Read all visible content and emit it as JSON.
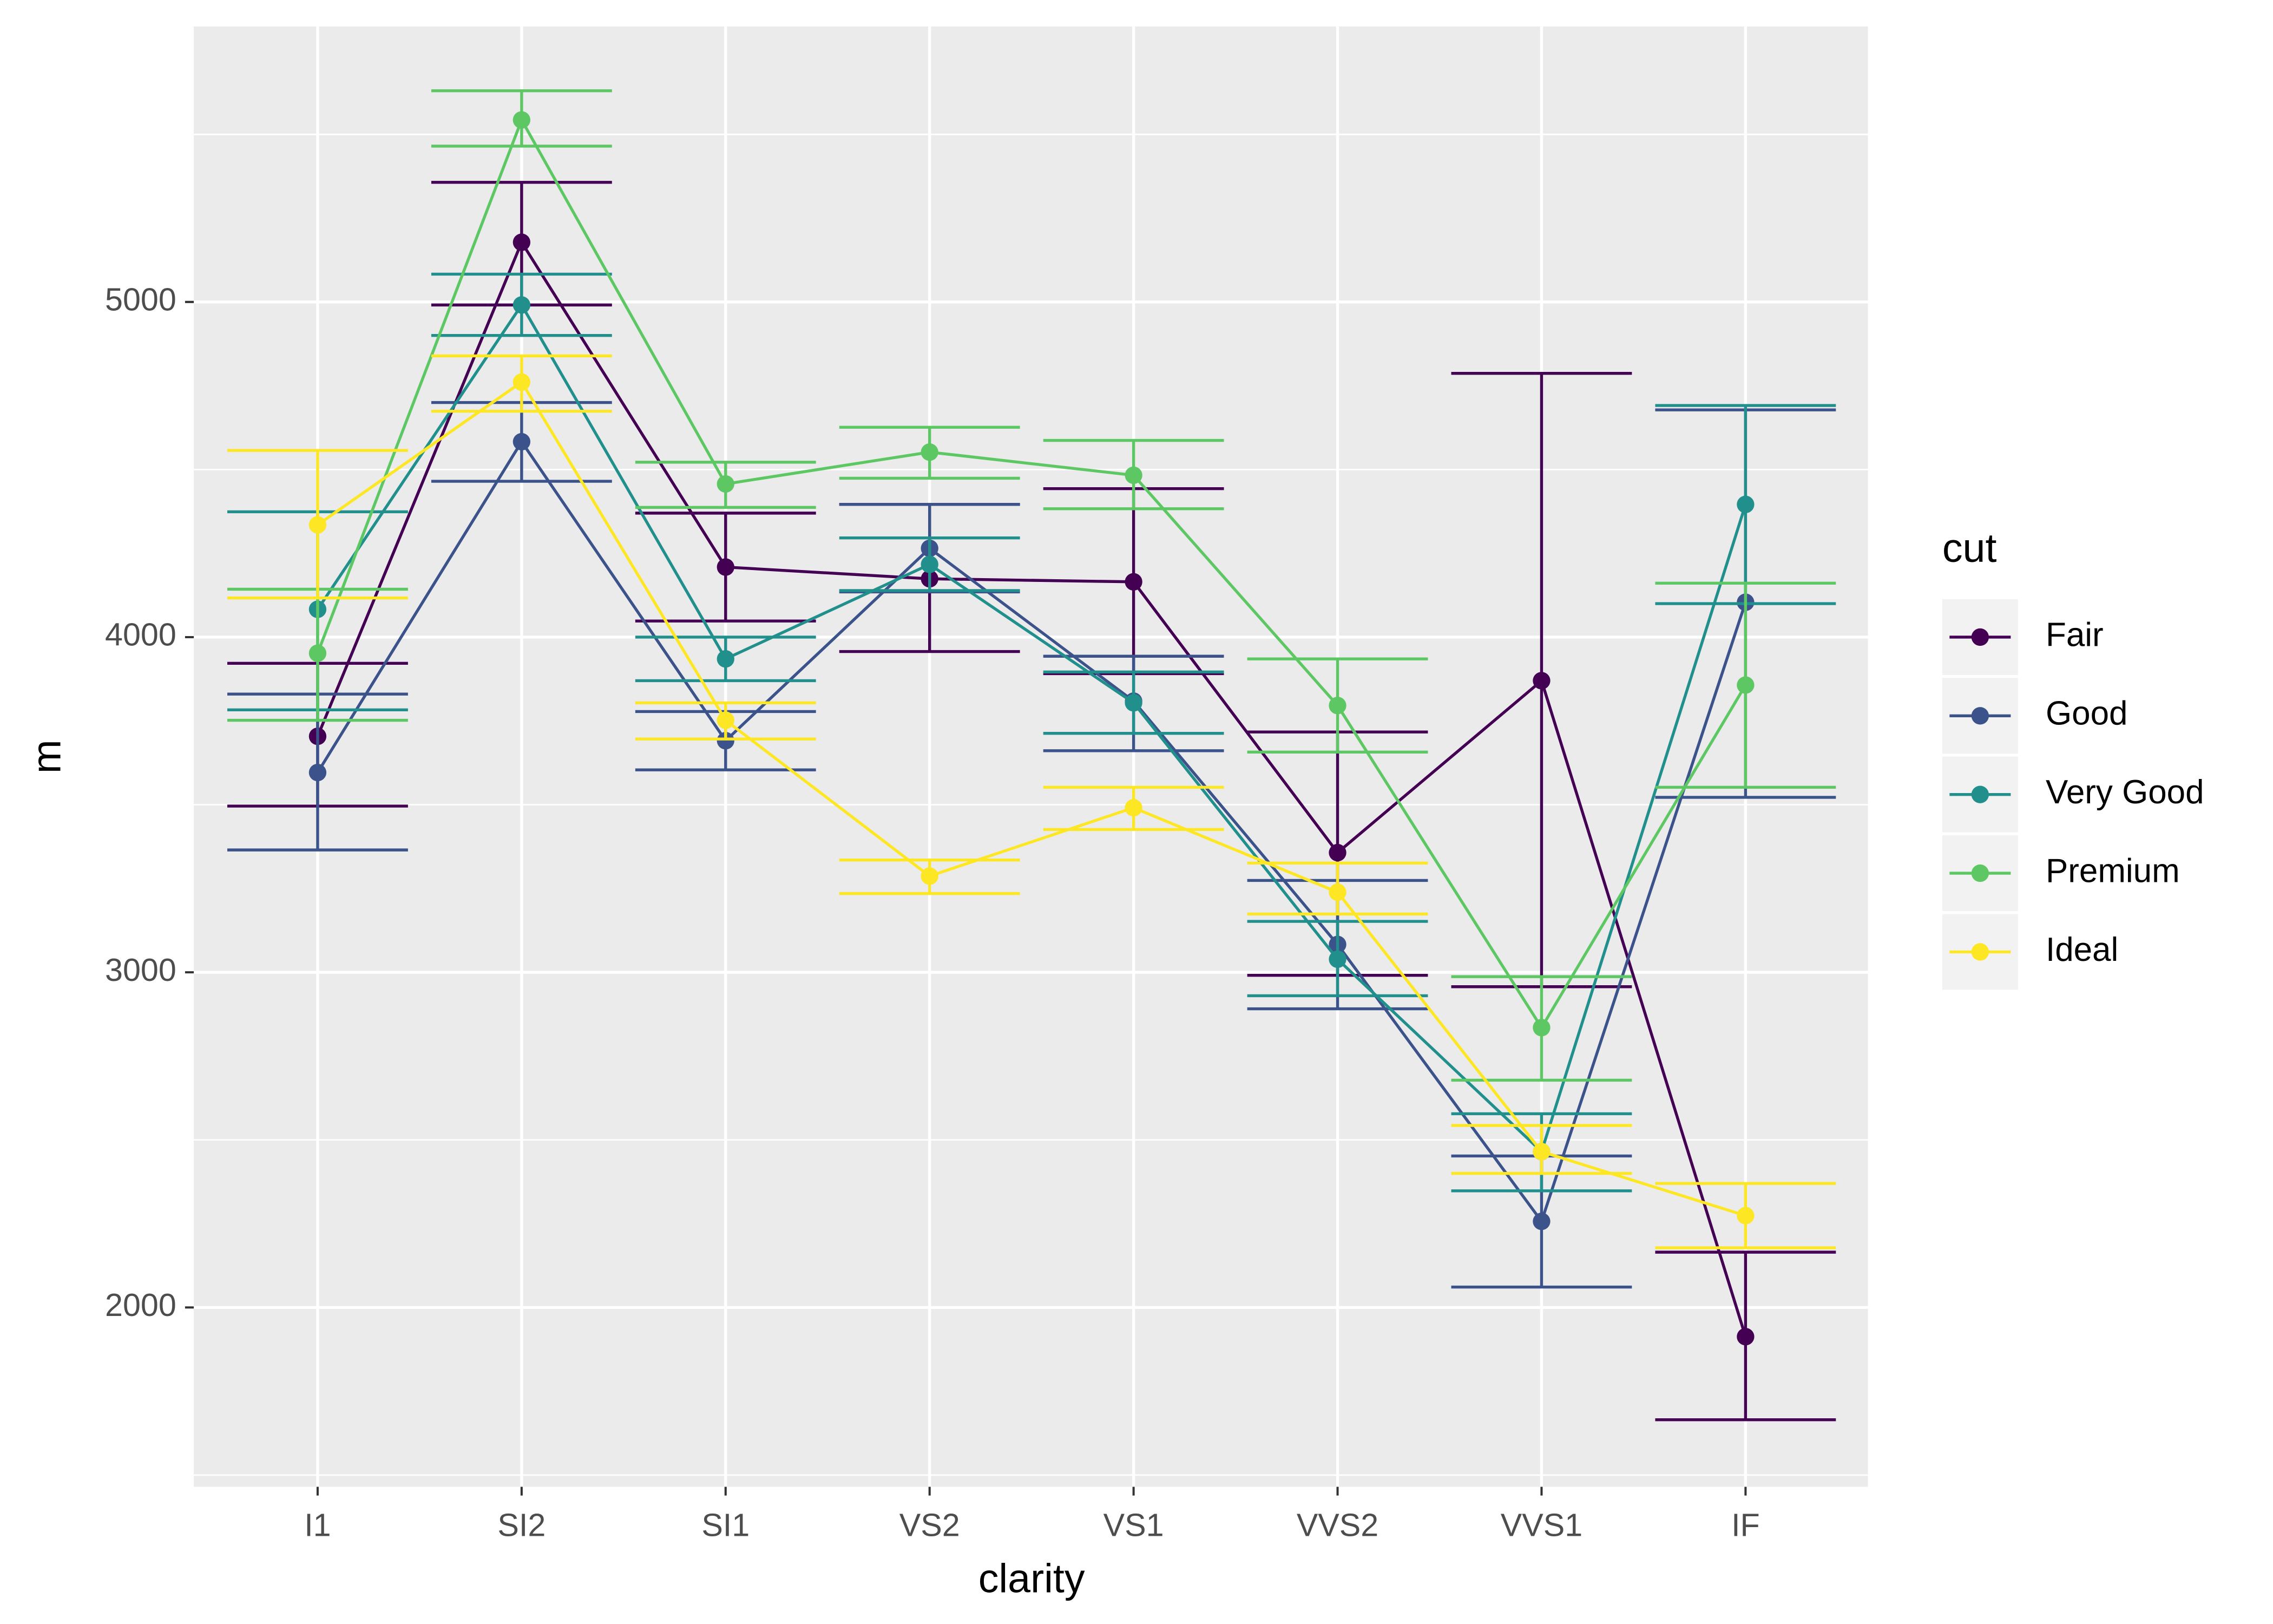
{
  "chart_data": {
    "type": "line",
    "x_label": "clarity",
    "y_label": "m",
    "legend_title": "cut",
    "categories": [
      "I1",
      "SI2",
      "SI1",
      "VS2",
      "VS1",
      "VVS2",
      "VVS1",
      "IF"
    ],
    "ylim": [
      1465,
      5822
    ],
    "yticks": [
      2000,
      3000,
      4000,
      5000
    ],
    "grid": true,
    "legend_position": "right",
    "series": [
      {
        "name": "Fair",
        "color": "#440154",
        "values": [
          3704,
          5178,
          4209,
          4174,
          4165,
          3357,
          3870,
          1913
        ],
        "ymin": [
          3496,
          4991,
          4048,
          3957,
          3891,
          2991,
          2957,
          1665
        ],
        "ymax": [
          3922,
          5357,
          4370,
          4396,
          4443,
          3717,
          4787,
          2165
        ]
      },
      {
        "name": "Good",
        "color": "#3B528B",
        "values": [
          3596,
          4583,
          3691,
          4265,
          3809,
          3083,
          2257,
          4104
        ],
        "ymin": [
          3365,
          4465,
          3604,
          4135,
          3661,
          2891,
          2061,
          3522
        ],
        "ymax": [
          3830,
          4700,
          3778,
          4396,
          3943,
          3274,
          2452,
          4678
        ]
      },
      {
        "name": "Very Good",
        "color": "#21908C",
        "values": [
          4083,
          4991,
          3935,
          4217,
          3804,
          3039,
          2465,
          4396
        ],
        "ymin": [
          3783,
          4900,
          3870,
          4139,
          3713,
          2930,
          2348,
          4100
        ],
        "ymax": [
          4374,
          5083,
          4000,
          4296,
          3896,
          3152,
          2578,
          4691
        ]
      },
      {
        "name": "Premium",
        "color": "#5DC863",
        "values": [
          3952,
          5543,
          4457,
          4552,
          4483,
          3796,
          2835,
          3857
        ],
        "ymin": [
          3752,
          5465,
          4387,
          4474,
          4383,
          3657,
          2678,
          3552
        ],
        "ymax": [
          4143,
          5630,
          4522,
          4626,
          4587,
          3935,
          2987,
          4161
        ]
      },
      {
        "name": "Ideal",
        "color": "#FDE725",
        "values": [
          4335,
          4761,
          3752,
          3287,
          3491,
          3239,
          2465,
          2274
        ],
        "ymin": [
          4117,
          4674,
          3696,
          3235,
          3426,
          3174,
          2400,
          2178
        ],
        "ymax": [
          4557,
          4839,
          3804,
          3335,
          3552,
          3326,
          2543,
          2370
        ]
      }
    ]
  }
}
